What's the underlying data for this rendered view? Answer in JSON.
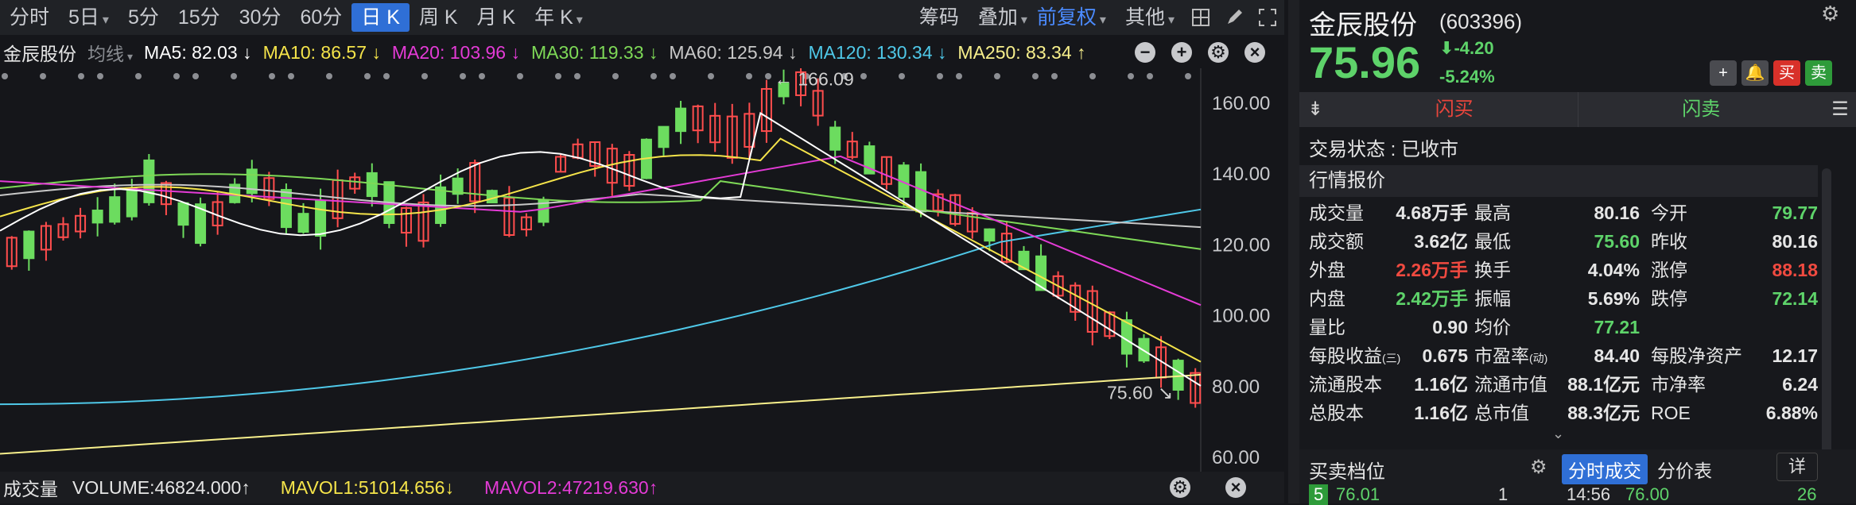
{
  "toolbar": {
    "periods": [
      "分时",
      "5日",
      "5分",
      "15分",
      "30分",
      "60分",
      "日 K",
      "周 K",
      "月 K",
      "年 K"
    ],
    "active_period": "日 K",
    "chips": "筹码",
    "overlay": "叠加",
    "adjust": "前复权",
    "other": "其他"
  },
  "ma_bar": {
    "stock": "金辰股份",
    "mode": "均线",
    "ma5": "MA5: 82.03 ↓",
    "ma10": "MA10: 86.57 ↓",
    "ma20": "MA20: 103.96 ↓",
    "ma30": "MA30: 119.33 ↓",
    "ma60": "MA60: 125.94 ↓",
    "ma120": "MA120: 130.34 ↓",
    "ma250": "MA250: 83.34 ↑",
    "colors": {
      "ma5": "#ffffff",
      "ma10": "#f5e44a",
      "ma20": "#e43bd6",
      "ma30": "#7ed957",
      "ma60": "#c8c8c8",
      "ma120": "#4fc8e8",
      "ma250": "#f8f08c"
    }
  },
  "chart_data": {
    "type": "candlestick",
    "ylim": [
      60,
      170
    ],
    "y_ticks": [
      "160.00",
      "140.00",
      "120.00",
      "100.00",
      "80.00",
      "60.00"
    ],
    "high_label": "166.09",
    "low_label": "75.60",
    "up_color": "#ff4d4d",
    "down_color": "#6cdc5f"
  },
  "volume_bar": {
    "title": "成交量",
    "volume": "VOLUME:46824.000↑",
    "mavol1": "MAVOL1:51014.656↓",
    "mavol2": "MAVOL2:47219.630↑"
  },
  "stock": {
    "name": "金辰股份",
    "code": "(603396)",
    "price": "75.96",
    "change": "-4.20",
    "pct": "-5.24%",
    "buy_btn": "买",
    "sell_btn": "卖"
  },
  "flash": {
    "buy": "闪买",
    "sell": "闪卖"
  },
  "status": "交易状态 : 已收市",
  "quote_title": "行情报价",
  "quotes": [
    [
      [
        "成交量",
        "4.68万手",
        ""
      ],
      [
        "最高",
        "80.16",
        ""
      ],
      [
        "今开",
        "79.77",
        "green"
      ]
    ],
    [
      [
        "成交额",
        "3.62亿",
        ""
      ],
      [
        "最低",
        "75.60",
        "green"
      ],
      [
        "昨收",
        "80.16",
        ""
      ]
    ],
    [
      [
        "外盘",
        "2.26万手",
        "red"
      ],
      [
        "换手",
        "4.04%",
        ""
      ],
      [
        "涨停",
        "88.18",
        "red"
      ]
    ],
    [
      [
        "内盘",
        "2.42万手",
        "green"
      ],
      [
        "振幅",
        "5.69%",
        ""
      ],
      [
        "跌停",
        "72.14",
        "green"
      ]
    ],
    [
      [
        "量比",
        "0.90",
        ""
      ],
      [
        "均价",
        "77.21",
        "green"
      ],
      [
        "",
        "",
        ""
      ]
    ]
  ],
  "fundamentals": [
    [
      [
        "每股收益",
        "(三)",
        "0.675"
      ],
      [
        "市盈率",
        "(动)",
        "84.40"
      ],
      [
        "每股净资产",
        "",
        "12.17"
      ]
    ],
    [
      [
        "流通股本",
        "",
        "1.16亿"
      ],
      [
        "流通市值",
        "",
        "88.1亿元"
      ],
      [
        "市净率",
        "",
        "6.24"
      ]
    ],
    [
      [
        "总股本",
        "",
        "1.16亿"
      ],
      [
        "总市值",
        "",
        "88.3亿元"
      ],
      [
        "ROE",
        "",
        "6.88%"
      ]
    ]
  ],
  "bottom": {
    "orderbook": "买卖档位",
    "tab_a": "分时成交",
    "tab_b": "分价表",
    "detail": "详",
    "level": "5",
    "level_price": "76.01",
    "level_vol": "1",
    "trade_time": "14:56",
    "trade_price": "76.00",
    "trade_vol": "26"
  }
}
